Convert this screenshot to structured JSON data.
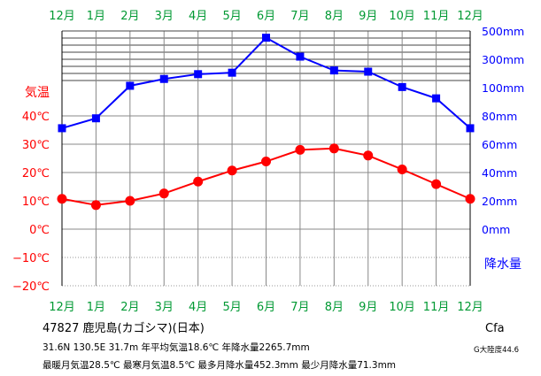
{
  "chart_data": {
    "type": "line",
    "months": [
      "12月",
      "1月",
      "2月",
      "3月",
      "4月",
      "5月",
      "6月",
      "7月",
      "8月",
      "9月",
      "10月",
      "11月",
      "12月"
    ],
    "temperature": {
      "label": "気温",
      "unit": "°C",
      "color": "#ff0000",
      "values": [
        10.7,
        8.5,
        10.0,
        12.6,
        16.8,
        20.7,
        23.9,
        28.0,
        28.5,
        26.0,
        21.1,
        15.9,
        10.7
      ],
      "ylim": [
        -20,
        40
      ],
      "tick_labels": [
        "40℃",
        "30℃",
        "20℃",
        "10℃",
        "0℃",
        "−10℃",
        "−20℃"
      ]
    },
    "precipitation": {
      "label": "降水量",
      "unit": "mm",
      "color": "#0000ff",
      "values": [
        71.3,
        78.3,
        112.7,
        161.0,
        194.9,
        205.2,
        452.3,
        318.6,
        221.1,
        212.4,
        104.0,
        92.4,
        71.3
      ],
      "tick_labels": [
        "500mm",
        "300mm",
        "100mm",
        "80mm",
        "60mm",
        "40mm",
        "20mm",
        "0mm"
      ]
    },
    "grid": true
  },
  "info": {
    "line1": "47827  鹿児島(カゴシマ)(日本)",
    "line2": "31.6N  130.5E  31.7m  年平均気温18.6℃  年降水量2265.7mm",
    "line3": "最暖月気温28.5℃  最寒月気温8.5℃  最多月降水量452.3mm  最少月降水量71.3mm",
    "koppen": "Cfa",
    "continentality": "G大陸度44.6"
  },
  "colors": {
    "month_label": "#009933",
    "temp_label": "#ff0000",
    "precip_label": "#0000ff",
    "grid": "#888888"
  }
}
